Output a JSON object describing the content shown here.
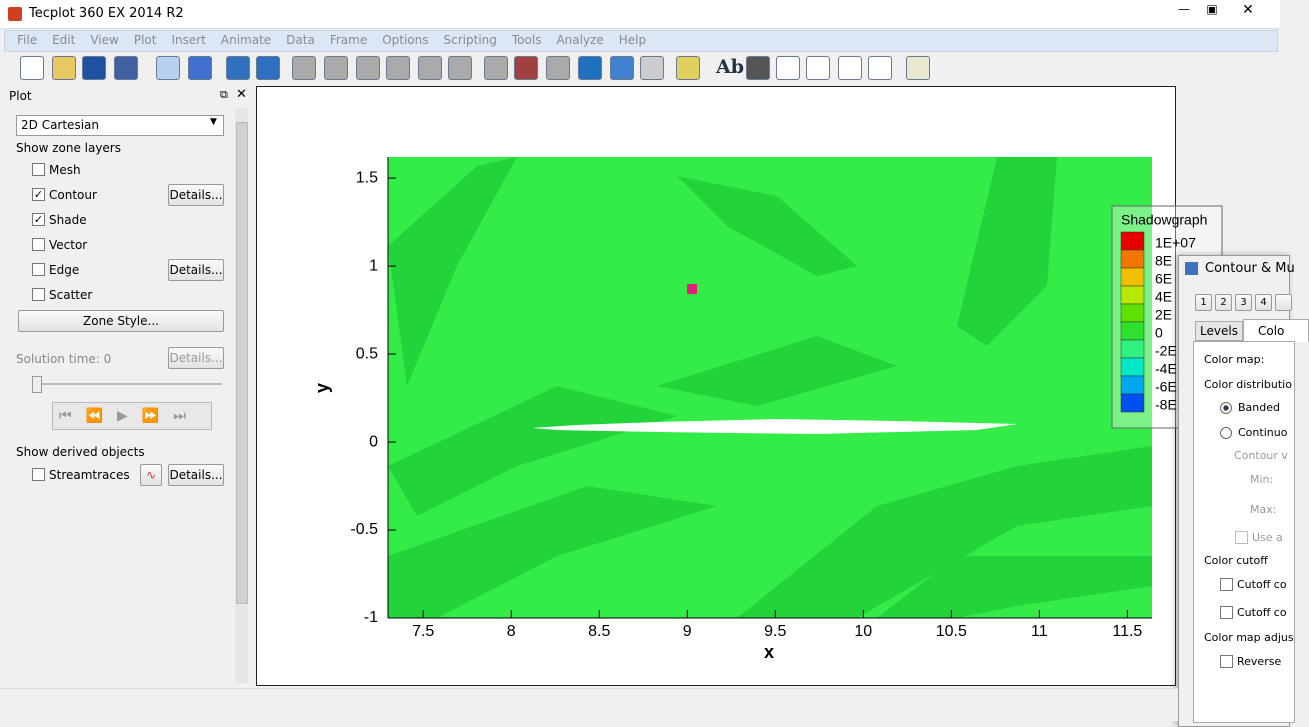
{
  "window": {
    "title": "Tecplot 360 EX 2014 R2"
  },
  "menu": [
    "File",
    "Edit",
    "View",
    "Plot",
    "Insert",
    "Animate",
    "Data",
    "Frame",
    "Options",
    "Scripting",
    "Tools",
    "Analyze",
    "Help"
  ],
  "toolbar": {
    "text_tool": "Ab"
  },
  "sidebar": {
    "title": "Plot",
    "plot_type": "2D Cartesian",
    "zone_layers_heading": "Show zone layers",
    "layers": [
      {
        "label": "Mesh",
        "checked": false
      },
      {
        "label": "Contour",
        "checked": true,
        "button": "Details..."
      },
      {
        "label": "Shade",
        "checked": true
      },
      {
        "label": "Vector",
        "checked": false
      },
      {
        "label": "Edge",
        "checked": false,
        "button": "Details..."
      },
      {
        "label": "Scatter",
        "checked": false
      }
    ],
    "zone_style": "Zone Style...",
    "solution_time": "Solution time:  0",
    "solution_details": "Details...",
    "derived_heading": "Show derived objects",
    "streamtraces": {
      "label": "Streamtraces",
      "checked": false,
      "button": "Details..."
    }
  },
  "plot": {
    "x_label": "x",
    "y_label": "y",
    "xlim": [
      7.3,
      11.64
    ],
    "ylim": [
      -1,
      1.62
    ],
    "xticks": [
      7.5,
      8,
      8.5,
      9,
      9.5,
      10,
      10.5,
      11,
      11.5
    ],
    "yticks": [
      -1,
      -0.5,
      0,
      0.5,
      1,
      1.5
    ],
    "legend": {
      "title": "Shadowgraph",
      "labels": [
        "1E+07",
        "8E",
        "6E",
        "4E",
        "2E",
        "0",
        "-2E",
        "-4E",
        "-6E",
        "-8E"
      ],
      "colors": [
        "#e80000",
        "#f07800",
        "#f0c000",
        "#b8e800",
        "#60e000",
        "#30e030",
        "#30f080",
        "#00e8c8",
        "#00a8f0",
        "#0050f0"
      ]
    }
  },
  "dialog": {
    "title": "Contour & Mu",
    "number_tabs": [
      "1",
      "2",
      "3",
      "4"
    ],
    "tabs": [
      "Levels",
      "Colo"
    ],
    "color_map": "Color map:",
    "distribution": "Color distributio",
    "banded": "Banded",
    "continuous": "Continuo",
    "contour_values": "Contour v",
    "min": "Min:",
    "max": "Max:",
    "use": "Use a",
    "cutoff": "Color cutoff",
    "cutoff_1": "Cutoff co",
    "cutoff_2": "Cutoff co",
    "adjust": "Color map adjus",
    "reverse": "Reverse"
  }
}
